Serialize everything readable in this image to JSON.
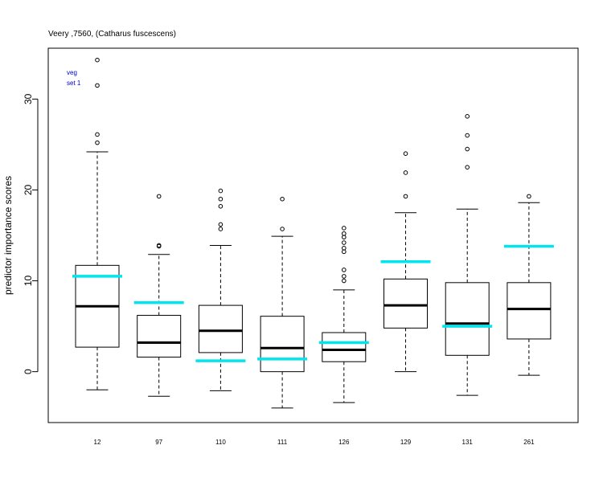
{
  "chart_data": {
    "type": "boxplot",
    "title": "Veery ,7560, (Catharus fuscescens)",
    "legend": [
      "veg",
      "set 1"
    ],
    "ylabel": "predictor importance scores",
    "xlabel": "",
    "ylim": [
      -5.6,
      35.6
    ],
    "yticks": [
      0,
      10,
      20,
      30
    ],
    "categories": [
      "12",
      "97",
      "110",
      "111",
      "126",
      "129",
      "131",
      "261"
    ],
    "boxes": [
      {
        "whisker_low": -2.0,
        "q1": 2.7,
        "median": 7.2,
        "q3": 11.7,
        "whisker_high": 24.2,
        "outliers": [
          25.2,
          26.1,
          31.5,
          34.3
        ],
        "highlight": 10.5
      },
      {
        "whisker_low": -2.7,
        "q1": 1.6,
        "median": 3.2,
        "q3": 6.2,
        "whisker_high": 12.9,
        "outliers": [
          13.8,
          13.9,
          19.3
        ],
        "highlight": 7.6
      },
      {
        "whisker_low": -2.1,
        "q1": 2.1,
        "median": 4.5,
        "q3": 7.3,
        "whisker_high": 13.9,
        "outliers": [
          15.7,
          16.2,
          18.2,
          19.0,
          19.9
        ],
        "highlight": 1.2
      },
      {
        "whisker_low": -4.0,
        "q1": 0.0,
        "median": 2.6,
        "q3": 6.1,
        "whisker_high": 14.9,
        "outliers": [
          15.7,
          19.0
        ],
        "highlight": 1.4
      },
      {
        "whisker_low": -3.4,
        "q1": 1.1,
        "median": 2.4,
        "q3": 4.3,
        "whisker_high": 9.0,
        "outliers": [
          10.0,
          10.5,
          11.2,
          13.2,
          13.6,
          14.2,
          14.8,
          15.2,
          15.8
        ],
        "highlight": 3.2
      },
      {
        "whisker_low": 0.0,
        "q1": 4.8,
        "median": 7.3,
        "q3": 10.2,
        "whisker_high": 17.5,
        "outliers": [
          19.3,
          21.9,
          24.0
        ],
        "highlight": 12.1
      },
      {
        "whisker_low": -2.6,
        "q1": 1.8,
        "median": 5.3,
        "q3": 9.8,
        "whisker_high": 17.9,
        "outliers": [
          22.5,
          24.5,
          26.0,
          28.1
        ],
        "highlight": 5.0
      },
      {
        "whisker_low": -0.4,
        "q1": 3.6,
        "median": 6.9,
        "q3": 9.8,
        "whisker_high": 18.6,
        "outliers": [
          19.3
        ],
        "highlight": 13.8
      }
    ],
    "colors": {
      "box": "#000000",
      "highlight": "#00e5ee",
      "legend": "#0000cc"
    },
    "grid": false
  }
}
